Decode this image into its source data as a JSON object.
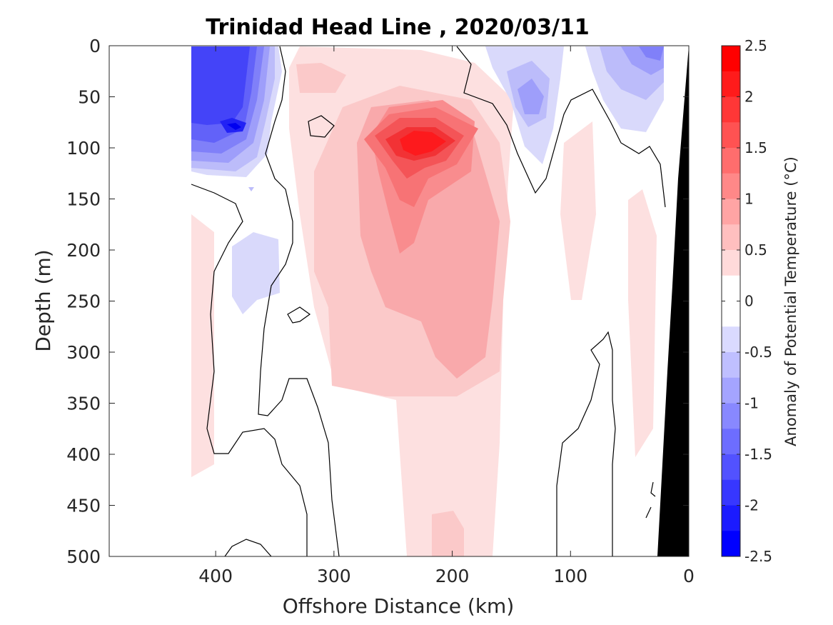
{
  "chart_data": {
    "type": "heatmap",
    "title": "Trinidad Head Line , 2020/03/11",
    "xlabel": "Offshore Distance (km)",
    "ylabel": "Depth (m)",
    "colorbar_label": "Anomaly of Potential Temperature (°C)",
    "xlim": [
      490,
      0
    ],
    "ylim": [
      0,
      500
    ],
    "x_reversed": true,
    "y_reversed": true,
    "xticks": [
      400,
      300,
      200,
      100,
      0
    ],
    "xtick_labels": [
      "400",
      "300",
      "200",
      "100",
      "0"
    ],
    "yticks": [
      0,
      50,
      100,
      150,
      200,
      250,
      300,
      350,
      400,
      450,
      500
    ],
    "ytick_labels": [
      "0",
      "50",
      "100",
      "150",
      "200",
      "250",
      "300",
      "350",
      "400",
      "450",
      "500"
    ],
    "colorbar_ticks": [
      2.5,
      2,
      1.5,
      1,
      0.5,
      0,
      -0.5,
      -1,
      -1.5,
      -2,
      -2.5
    ],
    "colorbar_tick_labels": [
      "2.5",
      "2",
      "1.5",
      "1",
      "0.5",
      "0",
      "-0.5",
      "-1",
      "-1.5",
      "-2",
      "-2.5"
    ],
    "colormap": "blue-white-red",
    "contour_levels_step": 0.25,
    "features": [
      {
        "description": "warm core",
        "center_x_km": 228,
        "center_depth_m": 95,
        "peak_anomaly": 2.25
      },
      {
        "description": "warm tongue",
        "x_range_km": [
          340,
          150
        ],
        "depth_range_m": [
          100,
          500
        ],
        "anomaly": 0.75
      },
      {
        "description": "cold near-surface",
        "center_x_km": 385,
        "center_depth_m": 80,
        "peak_anomaly": -2.25
      },
      {
        "description": "cold surface patch",
        "center_x_km": 130,
        "center_depth_m": 55,
        "peak_anomaly": -0.75
      },
      {
        "description": "cold surface patch",
        "center_x_km": 35,
        "center_depth_m": 15,
        "peak_anomaly": -1.0
      },
      {
        "description": "cool patch",
        "center_x_km": 370,
        "center_depth_m": 215,
        "peak_anomaly": -0.5
      }
    ],
    "colors": {
      "warm_max": "#ff0000",
      "cold_max": "#0000ff",
      "bathymetry": "#000000",
      "zero_contour": "#000000"
    }
  }
}
